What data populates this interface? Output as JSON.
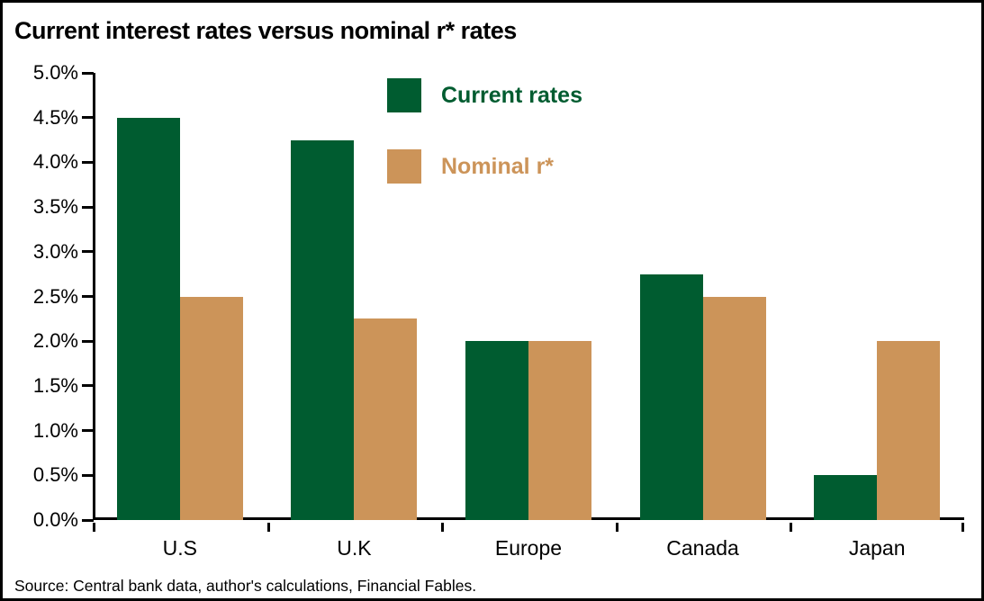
{
  "chart_data": {
    "type": "bar",
    "title": "Current interest rates versus nominal r* rates",
    "categories": [
      "U.S",
      "U.K",
      "Europe",
      "Canada",
      "Japan"
    ],
    "series": [
      {
        "name": "Current rates",
        "color": "#005C30",
        "values": [
          4.5,
          4.25,
          2.0,
          2.75,
          0.5
        ]
      },
      {
        "name": "Nominal r*",
        "color": "#CC9459",
        "values": [
          2.5,
          2.25,
          2.0,
          2.5,
          2.0
        ]
      }
    ],
    "ylim": [
      0,
      5
    ],
    "ytick_step": 0.5,
    "ytick_labels": [
      "0.0%",
      "0.5%",
      "1.0%",
      "1.5%",
      "2.0%",
      "2.5%",
      "3.0%",
      "3.5%",
      "4.0%",
      "4.5%",
      "5.0%"
    ],
    "xlabel": "",
    "ylabel": "",
    "grid": false,
    "legend_position": "inside-top-center",
    "bar_orientation": "vertical"
  },
  "source_note": "Source: Central bank data, author's calculations, Financial Fables.",
  "colors": {
    "current_rates": "#005C30",
    "nominal_r_star": "#CC9459",
    "axis": "#000000",
    "background": "#FFFFFF",
    "frame_border": "#000000"
  }
}
